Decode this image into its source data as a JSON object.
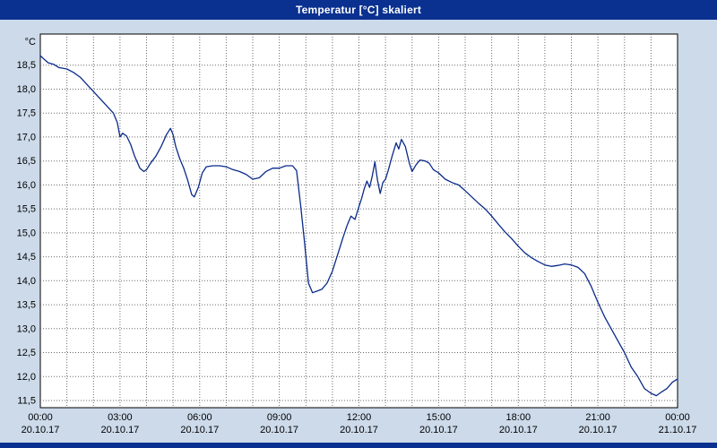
{
  "window": {
    "title": "Temperatur [°C] skaliert"
  },
  "colors": {
    "title_bar_bg": "#0a3190",
    "window_bg": "#ccdaea",
    "plot_bg": "#ffffff",
    "plot_border": "#000000",
    "grid": "#6b6b6b",
    "line": "#0a2a8a",
    "label_text": "#000000",
    "title_text": "#ffffff"
  },
  "chart_data": {
    "type": "line",
    "title": "Temperatur [°C] skaliert",
    "ylabel": "°C",
    "xlabel": "",
    "legend": "none",
    "grid": "dotted",
    "xlim": [
      0,
      24
    ],
    "ylim": [
      11.35,
      19.15
    ],
    "line_color": "#0a2a8a",
    "y_ticks": [
      {
        "value": 18.5,
        "label": "18,5"
      },
      {
        "value": 18.0,
        "label": "18,0"
      },
      {
        "value": 17.5,
        "label": "17,5"
      },
      {
        "value": 17.0,
        "label": "17,0"
      },
      {
        "value": 16.5,
        "label": "16,5"
      },
      {
        "value": 16.0,
        "label": "16,0"
      },
      {
        "value": 15.5,
        "label": "15,5"
      },
      {
        "value": 15.0,
        "label": "15,0"
      },
      {
        "value": 14.5,
        "label": "14,5"
      },
      {
        "value": 14.0,
        "label": "14,0"
      },
      {
        "value": 13.5,
        "label": "13,5"
      },
      {
        "value": 13.0,
        "label": "13,0"
      },
      {
        "value": 12.5,
        "label": "12,5"
      },
      {
        "value": 12.0,
        "label": "12,0"
      },
      {
        "value": 11.5,
        "label": "11,5"
      }
    ],
    "x_ticks": [
      {
        "hour": 0,
        "time": "00:00",
        "date": "20.10.17"
      },
      {
        "hour": 3,
        "time": "03:00",
        "date": "20.10.17"
      },
      {
        "hour": 6,
        "time": "06:00",
        "date": "20.10.17"
      },
      {
        "hour": 9,
        "time": "09:00",
        "date": "20.10.17"
      },
      {
        "hour": 12,
        "time": "12:00",
        "date": "20.10.17"
      },
      {
        "hour": 15,
        "time": "15:00",
        "date": "20.10.17"
      },
      {
        "hour": 18,
        "time": "18:00",
        "date": "20.10.17"
      },
      {
        "hour": 21,
        "time": "21:00",
        "date": "20.10.17"
      },
      {
        "hour": 24,
        "time": "00:00",
        "date": "21.10.17"
      }
    ],
    "x": [
      0,
      0.15,
      0.3,
      0.5,
      0.7,
      1,
      1.25,
      1.5,
      1.75,
      2,
      2.25,
      2.5,
      2.75,
      2.9,
      3,
      3.1,
      3.25,
      3.4,
      3.55,
      3.75,
      3.9,
      4,
      4.15,
      4.35,
      4.55,
      4.75,
      4.9,
      5,
      5.1,
      5.25,
      5.4,
      5.55,
      5.7,
      5.8,
      5.95,
      6.1,
      6.25,
      6.5,
      6.75,
      7,
      7.25,
      7.5,
      7.75,
      8,
      8.25,
      8.5,
      8.75,
      9,
      9.25,
      9.5,
      9.65,
      9.8,
      9.95,
      10.1,
      10.25,
      10.4,
      10.6,
      10.8,
      11,
      11.2,
      11.4,
      11.55,
      11.7,
      11.85,
      12,
      12.1,
      12.2,
      12.3,
      12.4,
      12.5,
      12.6,
      12.7,
      12.8,
      12.9,
      13,
      13.1,
      13.25,
      13.4,
      13.5,
      13.6,
      13.75,
      13.9,
      14,
      14.15,
      14.3,
      14.5,
      14.65,
      14.8,
      15,
      15.25,
      15.5,
      15.75,
      16,
      16.25,
      16.5,
      16.75,
      17,
      17.25,
      17.5,
      17.75,
      18,
      18.25,
      18.5,
      18.75,
      19,
      19.25,
      19.5,
      19.75,
      20,
      20.25,
      20.5,
      20.75,
      21,
      21.25,
      21.5,
      21.75,
      22,
      22.25,
      22.5,
      22.75,
      23,
      23.2,
      23.4,
      23.6,
      23.8,
      24
    ],
    "values": [
      18.7,
      18.62,
      18.55,
      18.52,
      18.45,
      18.42,
      18.35,
      18.25,
      18.1,
      17.95,
      17.8,
      17.65,
      17.5,
      17.3,
      17.0,
      17.08,
      17.02,
      16.85,
      16.6,
      16.35,
      16.28,
      16.32,
      16.45,
      16.6,
      16.8,
      17.05,
      17.18,
      17.05,
      16.8,
      16.55,
      16.35,
      16.1,
      15.8,
      15.75,
      15.95,
      16.25,
      16.38,
      16.4,
      16.4,
      16.38,
      16.32,
      16.28,
      16.22,
      16.12,
      16.15,
      16.28,
      16.35,
      16.35,
      16.4,
      16.4,
      16.3,
      15.6,
      14.8,
      13.95,
      13.75,
      13.78,
      13.82,
      13.95,
      14.2,
      14.55,
      14.9,
      15.15,
      15.35,
      15.28,
      15.55,
      15.72,
      15.92,
      16.08,
      15.95,
      16.18,
      16.48,
      16.1,
      15.82,
      16.05,
      16.12,
      16.3,
      16.6,
      16.88,
      16.75,
      16.95,
      16.8,
      16.45,
      16.28,
      16.42,
      16.52,
      16.5,
      16.45,
      16.32,
      16.25,
      16.12,
      16.05,
      16.0,
      15.88,
      15.75,
      15.62,
      15.5,
      15.35,
      15.18,
      15.02,
      14.88,
      14.72,
      14.58,
      14.48,
      14.4,
      14.33,
      14.3,
      14.32,
      14.35,
      14.33,
      14.28,
      14.15,
      13.88,
      13.55,
      13.25,
      13.0,
      12.75,
      12.5,
      12.2,
      12.0,
      11.75,
      11.65,
      11.6,
      11.68,
      11.75,
      11.88,
      11.95
    ]
  }
}
